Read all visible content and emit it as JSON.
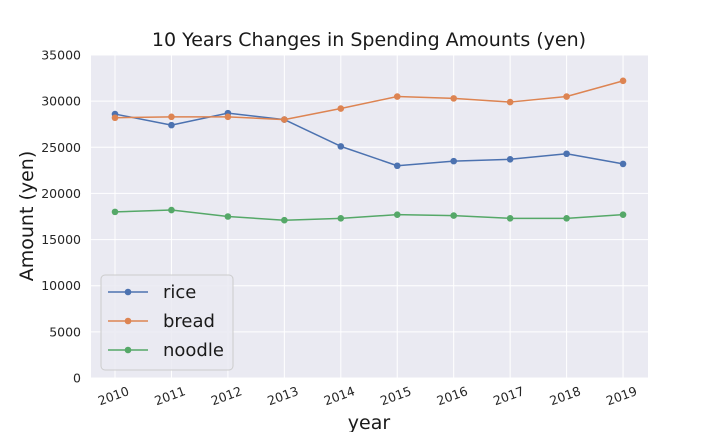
{
  "chart_data": {
    "type": "line",
    "title": "10 Years Changes in Spending Amounts (yen)",
    "xlabel": "year",
    "ylabel": "Amount (yen)",
    "categories": [
      "2010",
      "2011",
      "2012",
      "2013",
      "2014",
      "2015",
      "2016",
      "2017",
      "2018",
      "2019"
    ],
    "ylim": [
      0,
      35000
    ],
    "yticks": [
      0,
      5000,
      10000,
      15000,
      20000,
      25000,
      30000,
      35000
    ],
    "grid": true,
    "legend_position": "lower-left",
    "series": [
      {
        "name": "rice",
        "color": "#4c72b0",
        "values": [
          28600,
          27400,
          28700,
          28000,
          25100,
          23000,
          23500,
          23700,
          24300,
          23200
        ]
      },
      {
        "name": "bread",
        "color": "#dd8452",
        "values": [
          28200,
          28300,
          28300,
          28000,
          29200,
          30500,
          30300,
          29900,
          30500,
          32200
        ]
      },
      {
        "name": "noodle",
        "color": "#55a868",
        "values": [
          18000,
          18200,
          17500,
          17100,
          17300,
          17700,
          17600,
          17300,
          17300,
          17700
        ]
      }
    ]
  }
}
